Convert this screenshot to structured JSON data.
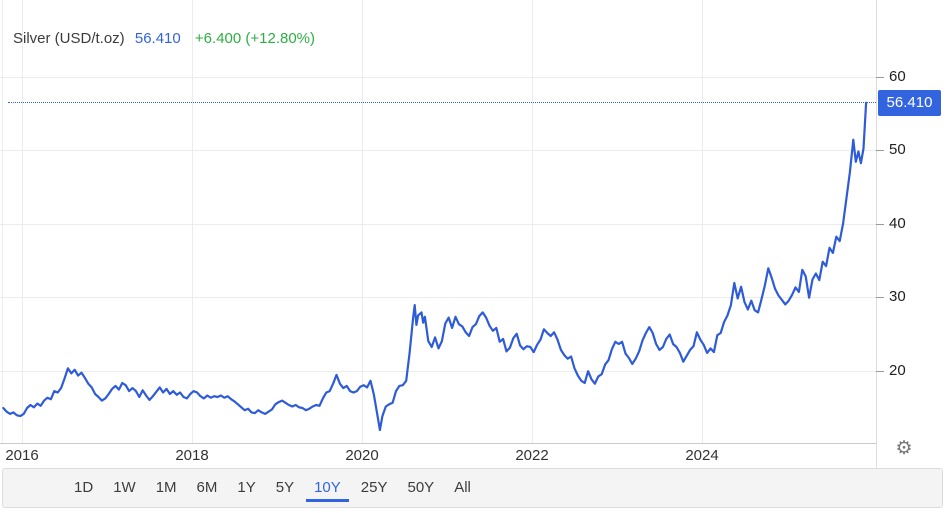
{
  "header": {
    "title": "Silver (USD/t.oz)",
    "price": "56.410",
    "change": "+6.400 (+12.80%)"
  },
  "y_axis": {
    "price_flag": "56.410"
  },
  "toolbar": {
    "ranges": [
      "1D",
      "1W",
      "1M",
      "6M",
      "1Y",
      "5Y",
      "10Y",
      "25Y",
      "50Y",
      "All"
    ],
    "active": "10Y"
  },
  "icons": {
    "settings_gear": "⚙"
  },
  "colors": {
    "line_blue": "#2e5bd8",
    "accent_blue": "#3364e0",
    "change_green": "#2fae43",
    "grid": "#ececec",
    "axis_line": "#c9c9c9"
  },
  "chart_data": {
    "type": "line",
    "title": "Silver (USD/t.oz)",
    "xlabel": "",
    "ylabel": "USD per troy ounce",
    "x_range": [
      2015.78,
      2026.05
    ],
    "y_ticks": [
      20,
      30,
      40,
      50,
      60
    ],
    "x_tick_years": [
      2016,
      2018,
      2020,
      2022,
      2024
    ],
    "x_tick_labels": [
      "2016",
      "2018",
      "2020",
      "2022",
      "2024"
    ],
    "grid": true,
    "legend": "none",
    "current_price": 56.41,
    "current_change": 6.4,
    "current_change_pct": 12.8,
    "series": [
      {
        "name": "Silver USD/t.oz",
        "points": [
          [
            2015.78,
            14.9
          ],
          [
            2015.82,
            14.4
          ],
          [
            2015.86,
            14.1
          ],
          [
            2015.9,
            14.3
          ],
          [
            2015.94,
            13.9
          ],
          [
            2015.98,
            13.8
          ],
          [
            2016.02,
            14.1
          ],
          [
            2016.06,
            14.9
          ],
          [
            2016.1,
            15.3
          ],
          [
            2016.14,
            15.0
          ],
          [
            2016.18,
            15.5
          ],
          [
            2016.22,
            15.2
          ],
          [
            2016.26,
            15.9
          ],
          [
            2016.3,
            16.3
          ],
          [
            2016.34,
            16.1
          ],
          [
            2016.38,
            17.2
          ],
          [
            2016.42,
            17.0
          ],
          [
            2016.46,
            17.6
          ],
          [
            2016.5,
            18.9
          ],
          [
            2016.54,
            20.3
          ],
          [
            2016.58,
            19.6
          ],
          [
            2016.62,
            20.1
          ],
          [
            2016.66,
            19.3
          ],
          [
            2016.7,
            19.7
          ],
          [
            2016.74,
            19.0
          ],
          [
            2016.78,
            18.2
          ],
          [
            2016.82,
            17.7
          ],
          [
            2016.86,
            16.8
          ],
          [
            2016.9,
            16.4
          ],
          [
            2016.94,
            15.9
          ],
          [
            2016.98,
            16.2
          ],
          [
            2017.02,
            16.8
          ],
          [
            2017.06,
            17.5
          ],
          [
            2017.1,
            17.9
          ],
          [
            2017.14,
            17.4
          ],
          [
            2017.18,
            18.3
          ],
          [
            2017.22,
            18.0
          ],
          [
            2017.26,
            17.2
          ],
          [
            2017.3,
            17.6
          ],
          [
            2017.34,
            17.2
          ],
          [
            2017.38,
            16.4
          ],
          [
            2017.42,
            17.3
          ],
          [
            2017.46,
            16.6
          ],
          [
            2017.5,
            16.0
          ],
          [
            2017.54,
            16.5
          ],
          [
            2017.58,
            17.1
          ],
          [
            2017.62,
            17.7
          ],
          [
            2017.66,
            17.0
          ],
          [
            2017.7,
            17.5
          ],
          [
            2017.74,
            16.8
          ],
          [
            2017.78,
            17.2
          ],
          [
            2017.82,
            16.7
          ],
          [
            2017.86,
            17.0
          ],
          [
            2017.9,
            16.4
          ],
          [
            2017.94,
            16.2
          ],
          [
            2017.98,
            16.8
          ],
          [
            2018.02,
            17.2
          ],
          [
            2018.06,
            17.0
          ],
          [
            2018.1,
            16.5
          ],
          [
            2018.14,
            16.2
          ],
          [
            2018.18,
            16.6
          ],
          [
            2018.22,
            16.3
          ],
          [
            2018.26,
            16.5
          ],
          [
            2018.3,
            16.4
          ],
          [
            2018.34,
            16.6
          ],
          [
            2018.38,
            16.3
          ],
          [
            2018.42,
            16.5
          ],
          [
            2018.46,
            16.1
          ],
          [
            2018.5,
            15.8
          ],
          [
            2018.54,
            15.4
          ],
          [
            2018.58,
            15.0
          ],
          [
            2018.62,
            14.6
          ],
          [
            2018.66,
            14.8
          ],
          [
            2018.7,
            14.3
          ],
          [
            2018.74,
            14.2
          ],
          [
            2018.78,
            14.6
          ],
          [
            2018.82,
            14.3
          ],
          [
            2018.86,
            14.1
          ],
          [
            2018.9,
            14.4
          ],
          [
            2018.94,
            14.7
          ],
          [
            2018.98,
            15.4
          ],
          [
            2019.02,
            15.7
          ],
          [
            2019.06,
            15.9
          ],
          [
            2019.1,
            15.6
          ],
          [
            2019.14,
            15.3
          ],
          [
            2019.18,
            15.1
          ],
          [
            2019.22,
            15.3
          ],
          [
            2019.26,
            15.0
          ],
          [
            2019.3,
            14.9
          ],
          [
            2019.34,
            14.6
          ],
          [
            2019.38,
            14.8
          ],
          [
            2019.42,
            15.1
          ],
          [
            2019.46,
            15.3
          ],
          [
            2019.5,
            15.2
          ],
          [
            2019.54,
            16.2
          ],
          [
            2019.58,
            17.0
          ],
          [
            2019.62,
            17.2
          ],
          [
            2019.66,
            18.2
          ],
          [
            2019.7,
            19.4
          ],
          [
            2019.74,
            18.2
          ],
          [
            2019.78,
            17.6
          ],
          [
            2019.82,
            17.9
          ],
          [
            2019.86,
            17.2
          ],
          [
            2019.9,
            17.0
          ],
          [
            2019.94,
            17.2
          ],
          [
            2019.98,
            17.8
          ],
          [
            2020.02,
            18.0
          ],
          [
            2020.06,
            17.7
          ],
          [
            2020.1,
            18.6
          ],
          [
            2020.14,
            16.7
          ],
          [
            2020.18,
            14.0
          ],
          [
            2020.21,
            11.9
          ],
          [
            2020.24,
            13.8
          ],
          [
            2020.28,
            15.1
          ],
          [
            2020.32,
            15.4
          ],
          [
            2020.36,
            15.6
          ],
          [
            2020.4,
            17.2
          ],
          [
            2020.44,
            17.9
          ],
          [
            2020.48,
            18.0
          ],
          [
            2020.52,
            18.6
          ],
          [
            2020.56,
            22.4
          ],
          [
            2020.6,
            27.0
          ],
          [
            2020.62,
            28.9
          ],
          [
            2020.64,
            26.2
          ],
          [
            2020.66,
            27.5
          ],
          [
            2020.7,
            27.9
          ],
          [
            2020.72,
            26.5
          ],
          [
            2020.74,
            27.3
          ],
          [
            2020.78,
            24.0
          ],
          [
            2020.82,
            23.2
          ],
          [
            2020.86,
            24.5
          ],
          [
            2020.9,
            23.0
          ],
          [
            2020.94,
            24.0
          ],
          [
            2020.98,
            26.4
          ],
          [
            2021.02,
            27.2
          ],
          [
            2021.06,
            25.8
          ],
          [
            2021.1,
            27.3
          ],
          [
            2021.14,
            26.3
          ],
          [
            2021.18,
            26.0
          ],
          [
            2021.22,
            25.2
          ],
          [
            2021.26,
            24.7
          ],
          [
            2021.3,
            25.9
          ],
          [
            2021.34,
            26.3
          ],
          [
            2021.38,
            27.4
          ],
          [
            2021.42,
            27.9
          ],
          [
            2021.46,
            27.2
          ],
          [
            2021.5,
            26.1
          ],
          [
            2021.54,
            25.4
          ],
          [
            2021.58,
            25.8
          ],
          [
            2021.62,
            23.9
          ],
          [
            2021.66,
            24.3
          ],
          [
            2021.7,
            22.6
          ],
          [
            2021.74,
            23.1
          ],
          [
            2021.78,
            24.4
          ],
          [
            2021.82,
            25.0
          ],
          [
            2021.86,
            23.4
          ],
          [
            2021.9,
            22.9
          ],
          [
            2021.94,
            23.3
          ],
          [
            2021.98,
            23.2
          ],
          [
            2022.02,
            22.5
          ],
          [
            2022.06,
            23.5
          ],
          [
            2022.1,
            24.2
          ],
          [
            2022.14,
            25.6
          ],
          [
            2022.18,
            25.1
          ],
          [
            2022.22,
            24.7
          ],
          [
            2022.26,
            25.2
          ],
          [
            2022.3,
            24.2
          ],
          [
            2022.34,
            22.8
          ],
          [
            2022.38,
            22.1
          ],
          [
            2022.42,
            21.6
          ],
          [
            2022.46,
            21.9
          ],
          [
            2022.5,
            20.3
          ],
          [
            2022.54,
            19.3
          ],
          [
            2022.58,
            18.6
          ],
          [
            2022.62,
            18.3
          ],
          [
            2022.66,
            19.9
          ],
          [
            2022.7,
            18.8
          ],
          [
            2022.74,
            18.2
          ],
          [
            2022.78,
            19.2
          ],
          [
            2022.82,
            19.5
          ],
          [
            2022.86,
            20.8
          ],
          [
            2022.9,
            21.4
          ],
          [
            2022.94,
            22.9
          ],
          [
            2022.98,
            23.9
          ],
          [
            2023.02,
            23.6
          ],
          [
            2023.06,
            23.9
          ],
          [
            2023.1,
            22.3
          ],
          [
            2023.14,
            21.7
          ],
          [
            2023.18,
            20.9
          ],
          [
            2023.22,
            21.6
          ],
          [
            2023.26,
            22.6
          ],
          [
            2023.3,
            24.1
          ],
          [
            2023.34,
            25.1
          ],
          [
            2023.38,
            25.9
          ],
          [
            2023.42,
            25.1
          ],
          [
            2023.46,
            23.6
          ],
          [
            2023.5,
            22.8
          ],
          [
            2023.54,
            23.2
          ],
          [
            2023.58,
            24.3
          ],
          [
            2023.62,
            24.9
          ],
          [
            2023.66,
            23.6
          ],
          [
            2023.7,
            23.2
          ],
          [
            2023.74,
            22.4
          ],
          [
            2023.78,
            21.2
          ],
          [
            2023.82,
            22.0
          ],
          [
            2023.86,
            22.8
          ],
          [
            2023.9,
            23.3
          ],
          [
            2023.94,
            25.2
          ],
          [
            2023.98,
            24.2
          ],
          [
            2024.02,
            23.5
          ],
          [
            2024.06,
            22.4
          ],
          [
            2024.1,
            23.0
          ],
          [
            2024.14,
            22.5
          ],
          [
            2024.18,
            24.8
          ],
          [
            2024.22,
            25.1
          ],
          [
            2024.26,
            26.6
          ],
          [
            2024.3,
            27.5
          ],
          [
            2024.34,
            28.9
          ],
          [
            2024.38,
            31.9
          ],
          [
            2024.42,
            29.8
          ],
          [
            2024.46,
            31.4
          ],
          [
            2024.5,
            29.3
          ],
          [
            2024.54,
            28.3
          ],
          [
            2024.58,
            29.5
          ],
          [
            2024.62,
            28.2
          ],
          [
            2024.66,
            27.9
          ],
          [
            2024.7,
            29.7
          ],
          [
            2024.74,
            31.6
          ],
          [
            2024.78,
            33.9
          ],
          [
            2024.82,
            32.6
          ],
          [
            2024.86,
            31.1
          ],
          [
            2024.9,
            30.2
          ],
          [
            2024.94,
            29.6
          ],
          [
            2024.98,
            29.0
          ],
          [
            2025.02,
            29.5
          ],
          [
            2025.06,
            30.3
          ],
          [
            2025.1,
            31.3
          ],
          [
            2025.14,
            30.7
          ],
          [
            2025.18,
            33.7
          ],
          [
            2025.22,
            32.8
          ],
          [
            2025.26,
            29.9
          ],
          [
            2025.3,
            32.4
          ],
          [
            2025.34,
            33.2
          ],
          [
            2025.38,
            32.3
          ],
          [
            2025.42,
            34.8
          ],
          [
            2025.46,
            34.2
          ],
          [
            2025.5,
            36.7
          ],
          [
            2025.54,
            36.0
          ],
          [
            2025.58,
            38.2
          ],
          [
            2025.62,
            37.6
          ],
          [
            2025.66,
            40.0
          ],
          [
            2025.7,
            43.5
          ],
          [
            2025.74,
            47.0
          ],
          [
            2025.78,
            51.4
          ],
          [
            2025.81,
            48.4
          ],
          [
            2025.84,
            49.8
          ],
          [
            2025.87,
            48.2
          ],
          [
            2025.9,
            50.2
          ],
          [
            2025.93,
            56.41
          ]
        ]
      }
    ]
  }
}
